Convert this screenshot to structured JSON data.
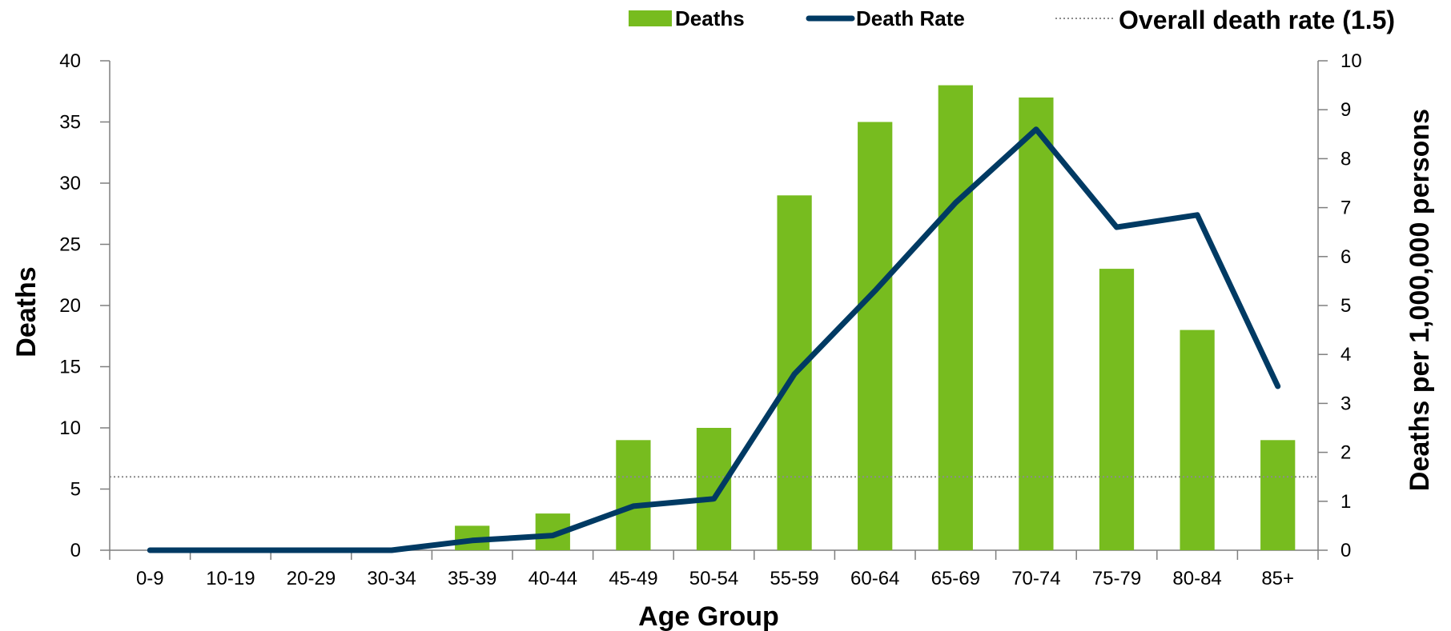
{
  "chart_data": {
    "type": "bar",
    "categories": [
      "0-9",
      "10-19",
      "20-29",
      "30-34",
      "35-39",
      "40-44",
      "45-49",
      "50-54",
      "55-59",
      "60-64",
      "65-69",
      "70-74",
      "75-79",
      "80-84",
      "85+"
    ],
    "series": [
      {
        "name": "Deaths",
        "type": "bar",
        "axis": "left",
        "color": "#77bc1f",
        "values": [
          0,
          0,
          0,
          0,
          2,
          3,
          9,
          10,
          29,
          35,
          38,
          37,
          23,
          18,
          9
        ]
      },
      {
        "name": "Death Rate",
        "type": "line",
        "axis": "right",
        "color": "#003a63",
        "values": [
          0,
          0,
          0,
          0,
          0.2,
          0.3,
          0.9,
          1.05,
          3.6,
          5.3,
          7.1,
          8.6,
          6.6,
          6.85,
          3.35
        ]
      }
    ],
    "reference_line": {
      "label": "Overall death rate (1.5)",
      "value": 1.5,
      "axis": "right",
      "color": "#8c8c8c",
      "style": "dotted"
    },
    "xlabel": "Age Group",
    "ylabel": "Deaths",
    "y2label": "Deaths per 1,000,000 persons",
    "ylim": [
      0,
      40
    ],
    "y2lim": [
      0,
      10
    ],
    "yticks": [
      "0",
      "5",
      "10",
      "15",
      "20",
      "25",
      "30",
      "35",
      "40"
    ],
    "y2ticks": [
      "0",
      "1",
      "2",
      "3",
      "4",
      "5",
      "6",
      "7",
      "8",
      "9",
      "10"
    ],
    "grid": false,
    "legend_position": "top"
  }
}
